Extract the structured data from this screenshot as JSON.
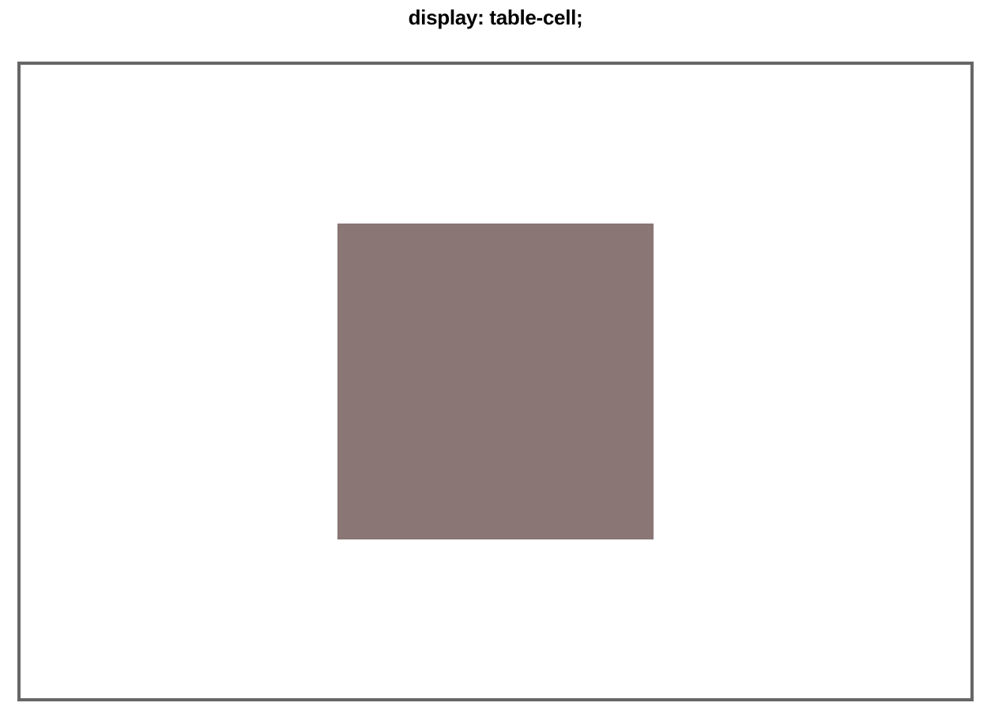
{
  "page": {
    "title": "display: table-cell;"
  },
  "colors": {
    "frame_border": "#666666",
    "box_fill": "#897675",
    "background": "#ffffff",
    "title_text": "#000000"
  }
}
